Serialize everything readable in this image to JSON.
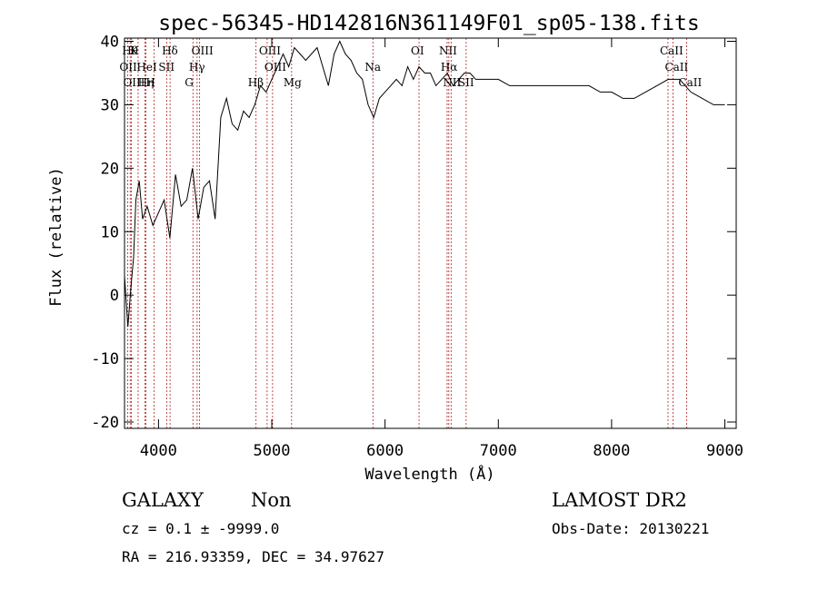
{
  "chart_data": {
    "type": "line",
    "title": "spec-56345-HD142816N361149F01_sp05-138.fits",
    "xlabel": "Wavelength (Å)",
    "ylabel": "Flux (relative)",
    "xlim": [
      3700,
      9100
    ],
    "ylim": [
      -21,
      40.5
    ],
    "xticks": [
      4000,
      5000,
      6000,
      7000,
      8000,
      9000
    ],
    "yticks": [
      -20,
      -10,
      0,
      10,
      20,
      30,
      40
    ],
    "grid": false,
    "series": [
      {
        "x": [
          3700,
          3730,
          3760,
          3780,
          3800,
          3830,
          3860,
          3900,
          3950,
          4000,
          4050,
          4100,
          4150,
          4200,
          4250,
          4300,
          4350,
          4400,
          4450,
          4500,
          4550,
          4600,
          4650,
          4700,
          4750,
          4800,
          4850,
          4900,
          4950,
          5000,
          5050,
          5100,
          5150,
          5200,
          5250,
          5300,
          5350,
          5400,
          5450,
          5500,
          5550,
          5600,
          5650,
          5700,
          5750,
          5800,
          5850,
          5900,
          5950,
          6000,
          6050,
          6100,
          6150,
          6200,
          6250,
          6300,
          6350,
          6400,
          6450,
          6500,
          6550,
          6600,
          6650,
          6700,
          6750,
          6800,
          6900,
          7000,
          7100,
          7200,
          7300,
          7400,
          7500,
          7600,
          7700,
          7800,
          7900,
          8000,
          8100,
          8200,
          8300,
          8400,
          8500,
          8600,
          8700,
          8800,
          8900,
          8950,
          9000
        ],
        "y": [
          3,
          -5,
          2,
          6,
          15,
          18,
          12,
          14,
          11,
          13,
          15,
          9,
          19,
          14,
          15,
          20,
          12,
          17,
          18,
          12,
          28,
          31,
          27,
          26,
          29,
          28,
          30,
          33,
          32,
          34,
          36,
          38,
          36,
          39,
          38,
          37,
          38,
          39,
          36,
          33,
          38,
          40,
          38,
          37,
          35,
          34,
          30,
          28,
          31,
          32,
          33,
          34,
          33,
          36,
          34,
          36,
          35,
          35,
          33,
          34,
          35,
          33,
          34,
          35,
          35,
          34,
          34,
          34,
          33,
          33,
          33,
          33,
          33,
          33,
          33,
          33,
          32,
          32,
          31,
          31,
          32,
          33,
          34,
          34,
          32,
          31,
          30,
          30,
          30
        ]
      }
    ],
    "line_markers": [
      {
        "wavelength": 3727,
        "label": "OII",
        "row": 1
      },
      {
        "wavelength": 3750,
        "label": "Hθ",
        "row": 0
      },
      {
        "wavelength": 3760,
        "label": "OIII",
        "row": 2
      },
      {
        "wavelength": 3820,
        "label": "K",
        "row": 0
      },
      {
        "wavelength": 3880,
        "label": "HeI",
        "row": 1
      },
      {
        "wavelength": 3890,
        "label": "Hη",
        "row": 2
      },
      {
        "wavelength": 3960,
        "label": "H",
        "row": 2
      },
      {
        "wavelength": 4072,
        "label": "SII",
        "row": 1
      },
      {
        "wavelength": 4102,
        "label": "Hδ",
        "row": 0
      },
      {
        "wavelength": 4304,
        "label": "G",
        "row": 2
      },
      {
        "wavelength": 4341,
        "label": "Hγ",
        "row": 1
      },
      {
        "wavelength": 4363,
        "label": "OIII",
        "row": 0
      },
      {
        "wavelength": 4861,
        "label": "Hβ",
        "row": 2
      },
      {
        "wavelength": 4959,
        "label": "OIII",
        "row": 0
      },
      {
        "wavelength": 5007,
        "label": "OIII",
        "row": 1
      },
      {
        "wavelength": 5175,
        "label": "Mg",
        "row": 2
      },
      {
        "wavelength": 5893,
        "label": "Na",
        "row": 1
      },
      {
        "wavelength": 6300,
        "label": "OI",
        "row": 0
      },
      {
        "wavelength": 6548,
        "label": "NII",
        "row": 0
      },
      {
        "wavelength": 6563,
        "label": "Hα",
        "row": 1
      },
      {
        "wavelength": 6583,
        "label": "NII",
        "row": 2
      },
      {
        "wavelength": 6716,
        "label": "SII",
        "row": 2
      },
      {
        "wavelength": 8498,
        "label": "CaII",
        "row": 0
      },
      {
        "wavelength": 8542,
        "label": "CaII",
        "row": 1
      },
      {
        "wavelength": 8662,
        "label": "CaII",
        "row": 2
      }
    ]
  },
  "info": {
    "class": "GALAXY",
    "subclass": "Non",
    "cz": "cz = 0.1 ± -9999.0",
    "radec": "RA = 216.93359, DEC =  34.97627",
    "survey": "LAMOST DR2",
    "obsdate": "Obs-Date: 20130221"
  }
}
